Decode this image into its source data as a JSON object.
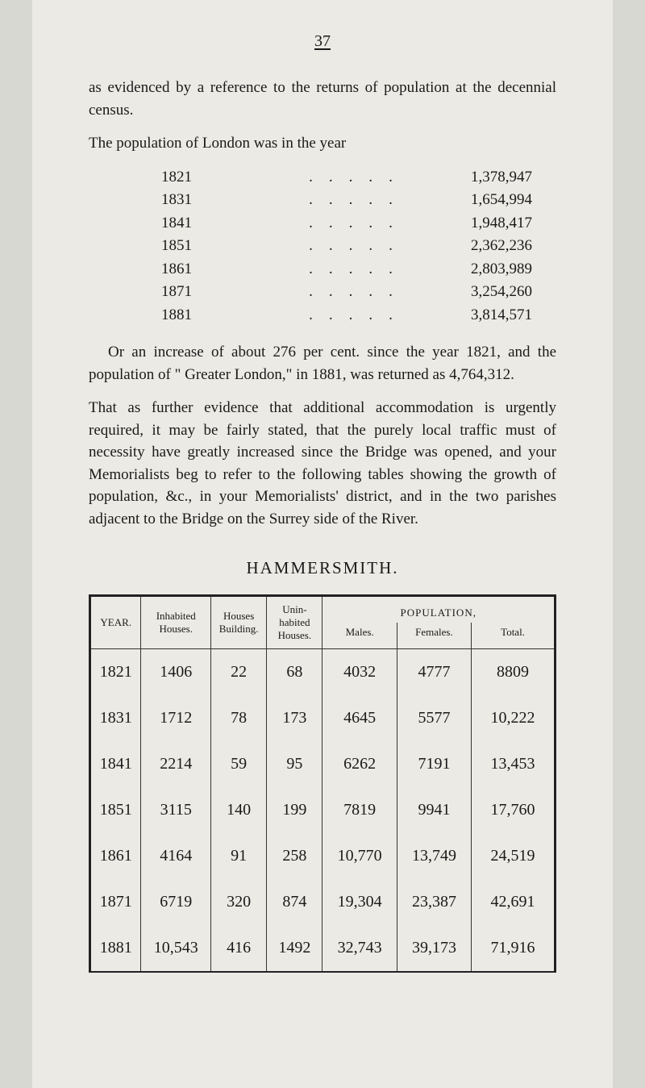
{
  "page_number": "37",
  "intro": "as evidenced by a reference to the returns of population at the decennial census.",
  "year_intro": "The population of London was in the year",
  "year_rows": [
    {
      "year": "1821",
      "pop": "1,378,947"
    },
    {
      "year": "1831",
      "pop": "1,654,994"
    },
    {
      "year": "1841",
      "pop": "1,948,417"
    },
    {
      "year": "1851",
      "pop": "2,362,236"
    },
    {
      "year": "1861",
      "pop": "2,803,989"
    },
    {
      "year": "1871",
      "pop": "3,254,260"
    },
    {
      "year": "1881",
      "pop": "3,814,571"
    }
  ],
  "para_after_list": "Or an increase of about 276 per cent. since the year 1821, and the population of \" Greater London,\" in 1881, was returned as 4,764,312.",
  "para_that": "That as further evidence that additional accommodation is urgently required, it may be fairly stated, that the purely local traffic must of necessity have greatly increased since the Bridge was opened, and your Memorialists beg to refer to the following tables showing the growth of population, &c., in your Memorialists' district, and in the two parishes adjacent to the Bridge on the Surrey side of the River.",
  "section_title": "HAMMERSMITH.",
  "table": {
    "headers": {
      "year": "YEAR.",
      "inhabited": "Inhabited Houses.",
      "building": "Houses Building.",
      "uninhabited": "Unin-habited Houses.",
      "population_label": "POPULATION,",
      "males": "Males.",
      "females": "Females.",
      "total": "Total."
    },
    "rows": [
      {
        "year": "1821",
        "inhabited": "1406",
        "building": "22",
        "unin": "68",
        "males": "4032",
        "females": "4777",
        "total": "8809"
      },
      {
        "year": "1831",
        "inhabited": "1712",
        "building": "78",
        "unin": "173",
        "males": "4645",
        "females": "5577",
        "total": "10,222"
      },
      {
        "year": "1841",
        "inhabited": "2214",
        "building": "59",
        "unin": "95",
        "males": "6262",
        "females": "7191",
        "total": "13,453"
      },
      {
        "year": "1851",
        "inhabited": "3115",
        "building": "140",
        "unin": "199",
        "males": "7819",
        "females": "9941",
        "total": "17,760"
      },
      {
        "year": "1861",
        "inhabited": "4164",
        "building": "91",
        "unin": "258",
        "males": "10,770",
        "females": "13,749",
        "total": "24,519"
      },
      {
        "year": "1871",
        "inhabited": "6719",
        "building": "320",
        "unin": "874",
        "males": "19,304",
        "females": "23,387",
        "total": "42,691"
      },
      {
        "year": "1881",
        "inhabited": "10,543",
        "building": "416",
        "unin": "1492",
        "males": "32,743",
        "females": "39,173",
        "total": "71,916"
      }
    ],
    "col_widths": [
      "11%",
      "15%",
      "12%",
      "12%",
      "16%",
      "16%",
      "18%"
    ]
  }
}
